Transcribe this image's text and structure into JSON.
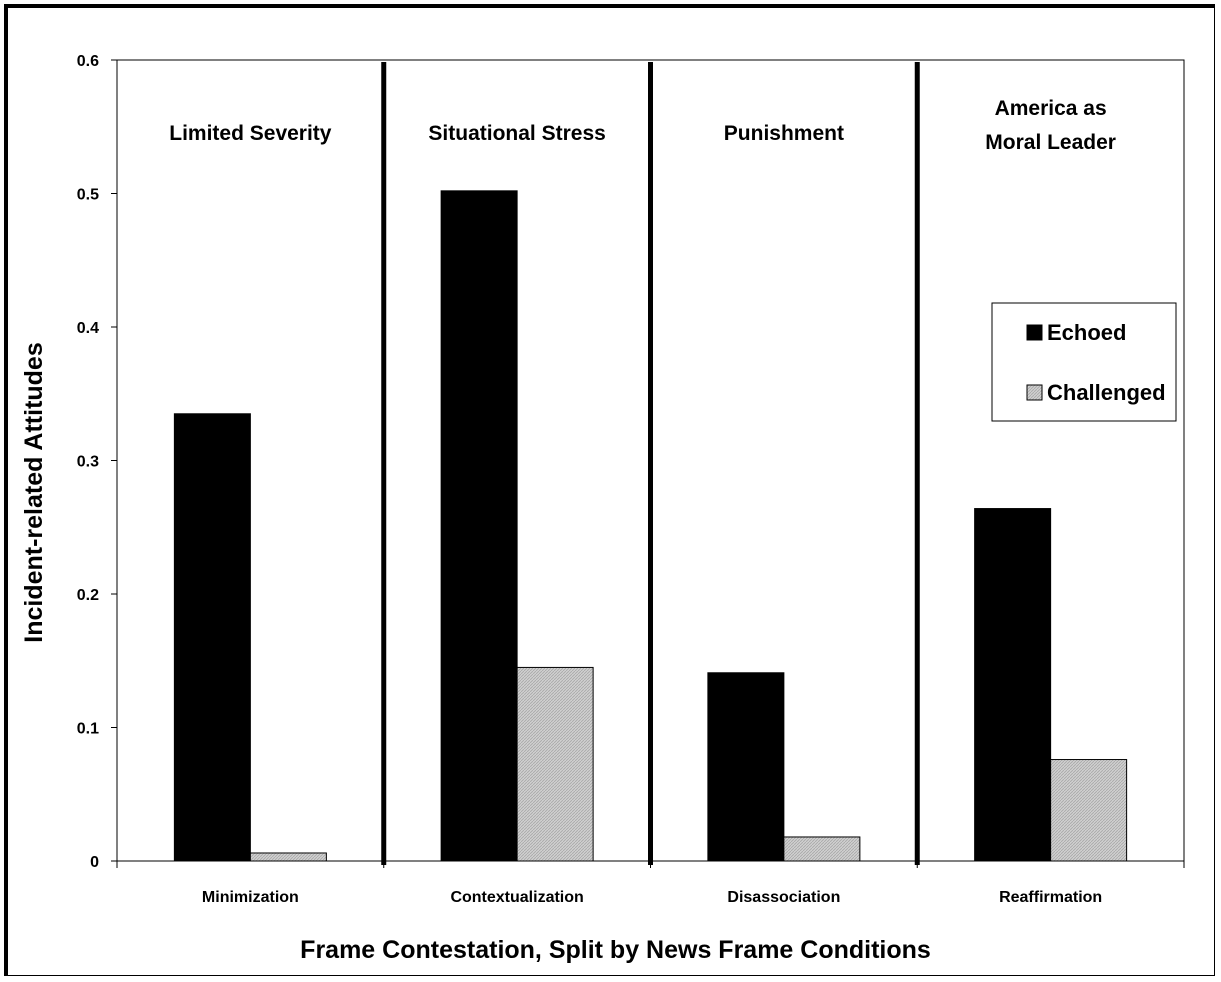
{
  "chart_data": {
    "type": "bar",
    "xlabel": "Frame Contestation, Split by News Frame Conditions",
    "ylabel": "Incident-related Attitudes",
    "ylim": [
      0,
      0.6
    ],
    "yticks": [
      "0",
      "0.1",
      "0.2",
      "0.3",
      "0.4",
      "0.5",
      "0.6"
    ],
    "categories": [
      "Minimization",
      "Contextualization",
      "Disassociation",
      "Reaffirmation"
    ],
    "panel_titles": [
      [
        "Limited Severity"
      ],
      [
        "Situational Stress"
      ],
      [
        "Punishment"
      ],
      [
        "America as",
        "Moral Leader"
      ]
    ],
    "series": [
      {
        "name": "Echoed",
        "values": [
          0.335,
          0.502,
          0.141,
          0.264
        ],
        "color": "#000000"
      },
      {
        "name": "Challenged",
        "values": [
          0.006,
          0.145,
          0.018,
          0.076
        ],
        "color": "#c8c8c8"
      }
    ],
    "grid": false,
    "legend_position": "right"
  }
}
